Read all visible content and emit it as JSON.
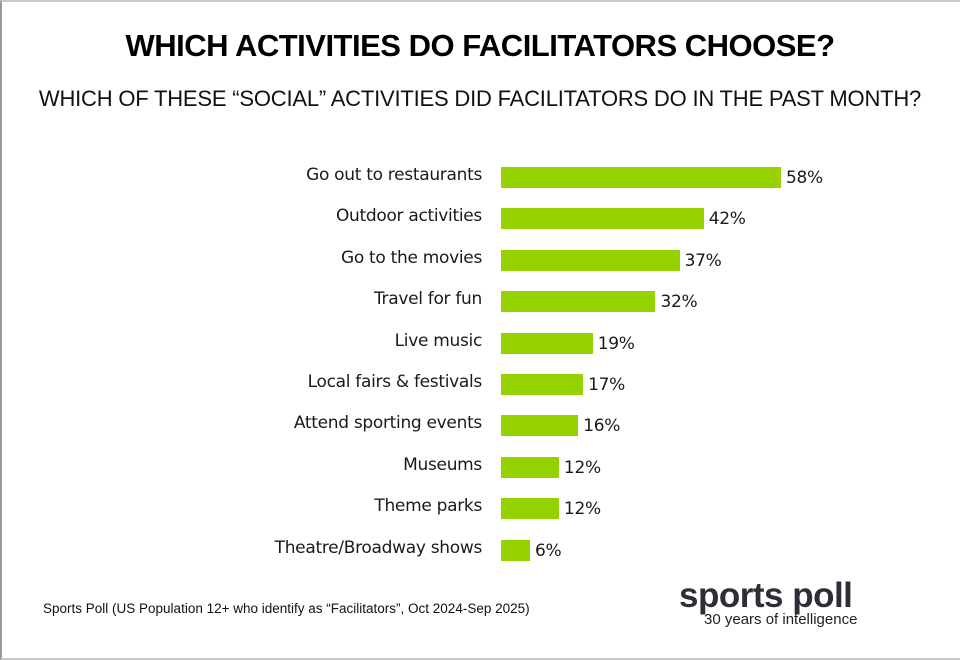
{
  "header": {
    "title": "WHICH ACTIVITIES DO FACILITATORS CHOOSE?",
    "subtitle": "WHICH OF THESE “SOCIAL” ACTIVITIES DID FACILITATORS DO IN THE PAST MONTH?"
  },
  "colors": {
    "bar": "#96d100",
    "text": "#1a1a1a",
    "logo": "#2e2e38"
  },
  "chart_data": {
    "type": "bar",
    "orientation": "horizontal",
    "title": "WHICH ACTIVITIES DO FACILITATORS CHOOSE?",
    "subtitle": "WHICH OF THESE “SOCIAL” ACTIVITIES DID FACILITATORS DO IN THE PAST MONTH?",
    "xlabel": "",
    "ylabel": "",
    "grid": false,
    "legend": null,
    "unit": "%",
    "categories": [
      "Go out to restaurants",
      "Outdoor activities",
      "Go to the movies",
      "Travel for fun",
      "Live music",
      "Local fairs & festivals",
      "Attend sporting events",
      "Museums",
      "Theme parks",
      "Theatre/Broadway shows"
    ],
    "values": [
      58,
      42,
      37,
      32,
      19,
      17,
      16,
      12,
      12,
      6
    ],
    "labels": [
      "58%",
      "42%",
      "37%",
      "32%",
      "19%",
      "17%",
      "16%",
      "12%",
      "12%",
      "6%"
    ]
  },
  "footer": {
    "source": "Sports Poll (US Population 12+ who identify as “Facilitators”, Oct 2024-Sep 2025)",
    "logo_name": "sports poll",
    "logo_tagline": "30 years of intelligence"
  }
}
